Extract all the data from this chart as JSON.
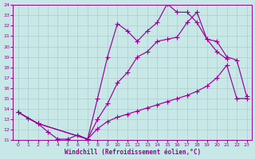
{
  "bg_color": "#c8e8e8",
  "line_color": "#990099",
  "grid_color": "#b0cccc",
  "xlabel": "Windchill (Refroidissement éolien,°C)",
  "xlim": [
    -0.5,
    23.5
  ],
  "ylim": [
    11,
    24
  ],
  "xticks": [
    0,
    1,
    2,
    3,
    4,
    5,
    6,
    7,
    8,
    9,
    10,
    11,
    12,
    13,
    14,
    15,
    16,
    17,
    18,
    19,
    20,
    21,
    22,
    23
  ],
  "yticks": [
    11,
    12,
    13,
    14,
    15,
    16,
    17,
    18,
    19,
    20,
    21,
    22,
    23,
    24
  ],
  "curve1_x": [
    0,
    1,
    2,
    3,
    4,
    5,
    6,
    7,
    8,
    9,
    10,
    11,
    12,
    13,
    14,
    15,
    16,
    17,
    18,
    19,
    20,
    21
  ],
  "curve1_y": [
    13.7,
    13.1,
    12.6,
    11.8,
    11.1,
    11.1,
    11.5,
    11.1,
    15.0,
    19.0,
    22.2,
    21.5,
    20.5,
    21.5,
    22.3,
    24.1,
    23.3,
    23.3,
    22.3,
    20.7,
    19.5,
    18.8
  ],
  "curve2_x": [
    0,
    2,
    7,
    8,
    9,
    10,
    11,
    12,
    13,
    14,
    15,
    16,
    17,
    18,
    19,
    20,
    21,
    22,
    23
  ],
  "curve2_y": [
    13.7,
    12.6,
    11.1,
    13.0,
    14.5,
    16.5,
    17.5,
    19.0,
    19.5,
    20.5,
    20.7,
    20.9,
    22.3,
    23.3,
    20.7,
    20.5,
    19.0,
    18.7,
    15.2
  ],
  "curve3_x": [
    0,
    2,
    7,
    8,
    9,
    10,
    11,
    12,
    13,
    14,
    15,
    16,
    17,
    18,
    19,
    20,
    21,
    22,
    23
  ],
  "curve3_y": [
    13.7,
    12.6,
    11.1,
    12.1,
    12.8,
    13.2,
    13.5,
    13.8,
    14.1,
    14.4,
    14.7,
    15.0,
    15.3,
    15.7,
    16.2,
    17.0,
    18.2,
    15.0,
    15.0
  ]
}
